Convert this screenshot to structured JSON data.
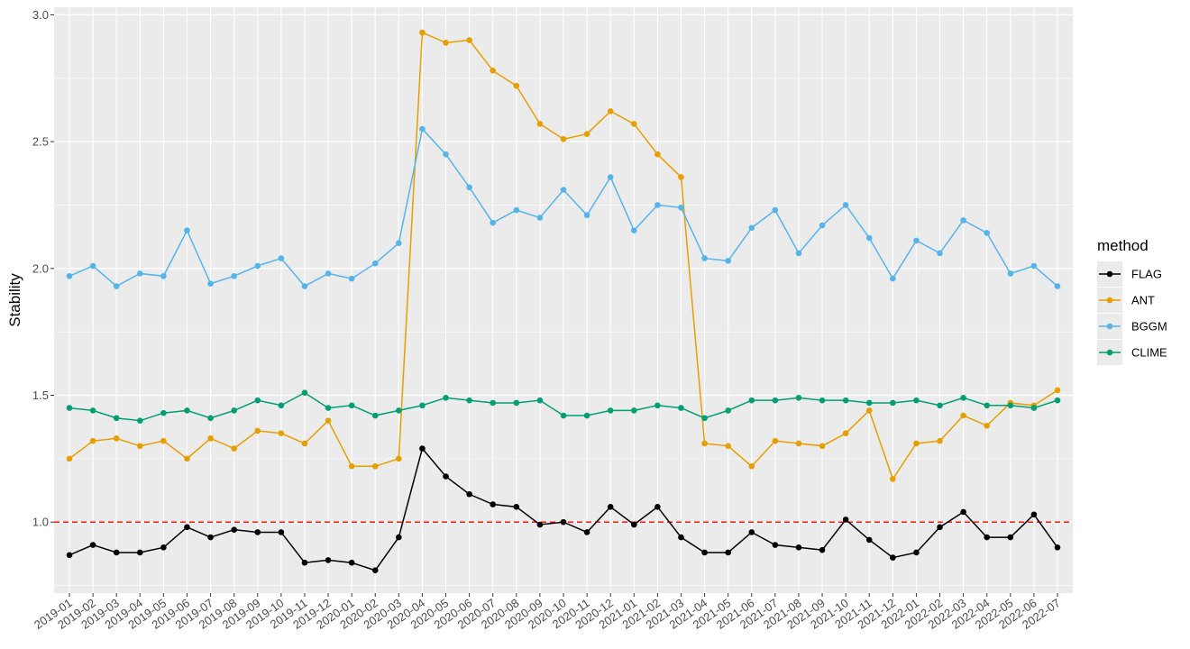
{
  "chart_data": {
    "type": "line",
    "title": "",
    "xlabel": "",
    "ylabel": "Stability",
    "ylim": [
      0.72,
      3.03
    ],
    "yticks": [
      "1.0",
      "1.5",
      "2.0",
      "2.5",
      "3.0"
    ],
    "grid": true,
    "legend": {
      "title": "method",
      "placement": "right"
    },
    "x": [
      "2019-01",
      "2019-02",
      "2019-03",
      "2019-04",
      "2019-05",
      "2019-06",
      "2019-07",
      "2019-08",
      "2019-09",
      "2019-10",
      "2019-11",
      "2019-12",
      "2020-01",
      "2020-02",
      "2020-03",
      "2020-04",
      "2020-05",
      "2020-06",
      "2020-07",
      "2020-08",
      "2020-09",
      "2020-10",
      "2020-11",
      "2020-12",
      "2021-01",
      "2021-02",
      "2021-03",
      "2021-04",
      "2021-05",
      "2021-06",
      "2021-07",
      "2021-08",
      "2021-09",
      "2021-10",
      "2021-11",
      "2021-12",
      "2022-01",
      "2022-02",
      "2022-03",
      "2022-04",
      "2022-05",
      "2022-06",
      "2022-07"
    ],
    "series": [
      {
        "name": "FLAG",
        "color": "#000000",
        "values": [
          0.87,
          0.91,
          0.88,
          0.88,
          0.9,
          0.98,
          0.94,
          0.97,
          0.96,
          0.96,
          0.84,
          0.85,
          0.84,
          0.81,
          0.94,
          1.29,
          1.18,
          1.11,
          1.07,
          1.06,
          0.99,
          1.0,
          0.96,
          1.06,
          0.99,
          1.06,
          0.94,
          0.88,
          0.88,
          0.96,
          0.91,
          0.9,
          0.89,
          1.01,
          0.93,
          0.86,
          0.88,
          0.98,
          1.04,
          0.94,
          0.94,
          1.03,
          0.9
        ]
      },
      {
        "name": "ANT",
        "color": "#E69F00",
        "values": [
          1.25,
          1.32,
          1.33,
          1.3,
          1.32,
          1.25,
          1.33,
          1.29,
          1.36,
          1.35,
          1.31,
          1.4,
          1.22,
          1.22,
          1.25,
          2.93,
          2.89,
          2.9,
          2.78,
          2.72,
          2.57,
          2.51,
          2.53,
          2.62,
          2.57,
          2.45,
          2.36,
          1.31,
          1.3,
          1.22,
          1.32,
          1.31,
          1.3,
          1.35,
          1.44,
          1.17,
          1.31,
          1.32,
          1.42,
          1.38,
          1.47,
          1.46,
          1.52
        ]
      },
      {
        "name": "BGGM",
        "color": "#56B4E9",
        "values": [
          1.97,
          2.01,
          1.93,
          1.98,
          1.97,
          2.15,
          1.94,
          1.97,
          2.01,
          2.04,
          1.93,
          1.98,
          1.96,
          2.02,
          2.1,
          2.55,
          2.45,
          2.32,
          2.18,
          2.23,
          2.2,
          2.31,
          2.21,
          2.36,
          2.15,
          2.25,
          2.24,
          2.04,
          2.03,
          2.16,
          2.23,
          2.06,
          2.17,
          2.25,
          2.12,
          1.96,
          2.11,
          2.06,
          2.19,
          2.14,
          1.98,
          2.01,
          1.93
        ]
      },
      {
        "name": "CLIME",
        "color": "#009E73",
        "values": [
          1.45,
          1.44,
          1.41,
          1.4,
          1.43,
          1.44,
          1.41,
          1.44,
          1.48,
          1.46,
          1.51,
          1.45,
          1.46,
          1.42,
          1.44,
          1.46,
          1.49,
          1.48,
          1.47,
          1.47,
          1.48,
          1.42,
          1.42,
          1.44,
          1.44,
          1.46,
          1.45,
          1.41,
          1.44,
          1.48,
          1.48,
          1.49,
          1.48,
          1.48,
          1.47,
          1.47,
          1.48,
          1.46,
          1.49,
          1.46,
          1.46,
          1.45,
          1.48
        ]
      }
    ],
    "reference_line": {
      "y": 1.0,
      "color": "#ff0000",
      "style": "dashed"
    }
  }
}
